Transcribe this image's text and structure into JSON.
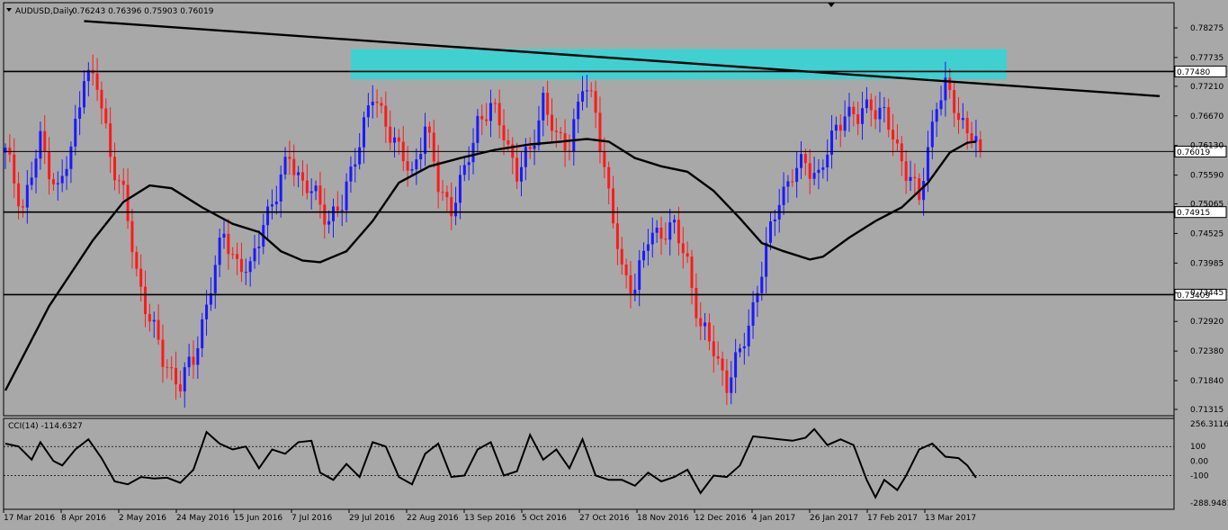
{
  "symbol_label": "AUDUSD,Daily",
  "ohlc_label": "0.76243 0.76396 0.75903 0.76019",
  "colors": {
    "background": "#a8a8a8",
    "bull": "#1a1aff",
    "bear": "#ff1a1a",
    "resistance_zone": "#40d0d0",
    "line": "#000000"
  },
  "chart_data": [
    {
      "type": "candlestick",
      "title": "AUDUSD,Daily",
      "y_ticks": [
        "0.78275",
        "0.77735",
        "0.77210",
        "0.76670",
        "0.76130",
        "0.75590",
        "0.75065",
        "0.74525",
        "0.73985",
        "0.73445",
        "0.72920",
        "0.72380",
        "0.71840",
        "0.71315"
      ],
      "ylim": [
        0.71315,
        0.7845
      ],
      "x_labels": [
        "17 Mar 2016",
        "8 Apr 2016",
        "2 May 2016",
        "24 May 2016",
        "15 Jun 2016",
        "7 Jul 2016",
        "29 Jul 2016",
        "22 Aug 2016",
        "13 Sep 2016",
        "5 Oct 2016",
        "27 Oct 2016",
        "18 Nov 2016",
        "12 Dec 2016",
        "4 Jan 2017",
        "26 Jan 2017",
        "17 Feb 2017",
        "13 Mar 2017"
      ],
      "close_path": [
        [
          0,
          0.76
        ],
        [
          4,
          0.75
        ],
        [
          8,
          0.762
        ],
        [
          12,
          0.753
        ],
        [
          15,
          0.76
        ],
        [
          18,
          0.775
        ],
        [
          21,
          0.772
        ],
        [
          24,
          0.76
        ],
        [
          27,
          0.752
        ],
        [
          30,
          0.738
        ],
        [
          33,
          0.73
        ],
        [
          36,
          0.722
        ],
        [
          40,
          0.718
        ],
        [
          43,
          0.722
        ],
        [
          47,
          0.736
        ],
        [
          50,
          0.745
        ],
        [
          53,
          0.74
        ],
        [
          56,
          0.738
        ],
        [
          59,
          0.748
        ],
        [
          62,
          0.752
        ],
        [
          65,
          0.76
        ],
        [
          68,
          0.754
        ],
        [
          71,
          0.752
        ],
        [
          74,
          0.748
        ],
        [
          77,
          0.75
        ],
        [
          80,
          0.76
        ],
        [
          84,
          0.77
        ],
        [
          87,
          0.766
        ],
        [
          90,
          0.76
        ],
        [
          93,
          0.756
        ],
        [
          96,
          0.765
        ],
        [
          99,
          0.754
        ],
        [
          102,
          0.75
        ],
        [
          105,
          0.756
        ],
        [
          108,
          0.766
        ],
        [
          111,
          0.768
        ],
        [
          114,
          0.764
        ],
        [
          117,
          0.756
        ],
        [
          120,
          0.76
        ],
        [
          123,
          0.77
        ],
        [
          126,
          0.762
        ],
        [
          129,
          0.762
        ],
        [
          132,
          0.772
        ],
        [
          135,
          0.768
        ],
        [
          138,
          0.752
        ],
        [
          141,
          0.738
        ],
        [
          144,
          0.736
        ],
        [
          147,
          0.744
        ],
        [
          150,
          0.746
        ],
        [
          153,
          0.746
        ],
        [
          156,
          0.74
        ],
        [
          159,
          0.728
        ],
        [
          162,
          0.724
        ],
        [
          165,
          0.718
        ],
        [
          168,
          0.723
        ],
        [
          171,
          0.732
        ],
        [
          174,
          0.742
        ],
        [
          177,
          0.752
        ],
        [
          180,
          0.756
        ],
        [
          183,
          0.758
        ],
        [
          186,
          0.756
        ],
        [
          189,
          0.762
        ],
        [
          192,
          0.768
        ],
        [
          195,
          0.766
        ],
        [
          198,
          0.769
        ],
        [
          201,
          0.767
        ],
        [
          204,
          0.76
        ],
        [
          207,
          0.756
        ],
        [
          209,
          0.751
        ],
        [
          211,
          0.76
        ],
        [
          213,
          0.77
        ],
        [
          215,
          0.772
        ],
        [
          218,
          0.766
        ],
        [
          221,
          0.764
        ],
        [
          223,
          0.76019
        ]
      ],
      "series": [
        {
          "name": "",
          "type": "ma",
          "points": [
            [
              0,
              0.7166
            ],
            [
              10,
              0.732
            ],
            [
              20,
              0.744
            ],
            [
              27,
              0.751
            ],
            [
              33,
              0.754
            ],
            [
              38,
              0.7535
            ],
            [
              45,
              0.75
            ],
            [
              52,
              0.747
            ],
            [
              58,
              0.7455
            ],
            [
              63,
              0.742
            ],
            [
              68,
              0.7403
            ],
            [
              72,
              0.74
            ],
            [
              78,
              0.742
            ],
            [
              84,
              0.7475
            ],
            [
              90,
              0.7545
            ],
            [
              97,
              0.7575
            ],
            [
              104,
              0.759
            ],
            [
              112,
              0.7605
            ],
            [
              120,
              0.7615
            ],
            [
              127,
              0.762
            ],
            [
              133,
              0.7625
            ],
            [
              138,
              0.762
            ],
            [
              144,
              0.759
            ],
            [
              150,
              0.7575
            ],
            [
              156,
              0.7565
            ],
            [
              162,
              0.753
            ],
            [
              168,
              0.748
            ],
            [
              173,
              0.7435
            ],
            [
              178,
              0.742
            ],
            [
              184,
              0.7405
            ],
            [
              187,
              0.741
            ],
            [
              193,
              0.7445
            ],
            [
              199,
              0.7475
            ],
            [
              205,
              0.75
            ],
            [
              211,
              0.7545
            ],
            [
              216,
              0.76
            ],
            [
              220,
              0.7618
            ],
            [
              222,
              0.762
            ]
          ]
        },
        {
          "name": "",
          "type": "trendline",
          "points": [
            [
              18,
              0.784
            ],
            [
              264,
              0.7703
            ]
          ]
        },
        {
          "name": "",
          "type": "hline",
          "value": 0.7748,
          "label": "0.77480"
        },
        {
          "name": "",
          "type": "hline",
          "value": 0.76019,
          "label": "0.76019"
        },
        {
          "name": "",
          "type": "hline",
          "value": 0.74915,
          "label": "0.74915"
        },
        {
          "name": "",
          "type": "hline",
          "value": 0.73409,
          "label": "0.73409"
        }
      ],
      "zone": {
        "x_from": 79,
        "x_to": 229,
        "y_from": 0.77338,
        "y_to": 0.7789
      }
    },
    {
      "type": "line",
      "title": "CCI(14) -114.6327",
      "y_ticks": [
        "256.3116",
        "100",
        "0.00",
        "-100",
        "-288.9481"
      ],
      "ylim": [
        -288.9481,
        256.3116
      ],
      "levels": [
        100,
        -100
      ],
      "series": [
        {
          "name": "CCI(14)",
          "points": [
            [
              0,
              120
            ],
            [
              3,
              100
            ],
            [
              6,
              10
            ],
            [
              8,
              130
            ],
            [
              11,
              0
            ],
            [
              13,
              -30
            ],
            [
              16,
              80
            ],
            [
              19,
              150
            ],
            [
              22,
              20
            ],
            [
              25,
              -140
            ],
            [
              28,
              -160
            ],
            [
              31,
              -110
            ],
            [
              34,
              -120
            ],
            [
              37,
              -115
            ],
            [
              40,
              -150
            ],
            [
              43,
              -60
            ],
            [
              46,
              200
            ],
            [
              49,
              120
            ],
            [
              52,
              80
            ],
            [
              55,
              100
            ],
            [
              58,
              -50
            ],
            [
              61,
              80
            ],
            [
              64,
              50
            ],
            [
              67,
              130
            ],
            [
              70,
              140
            ],
            [
              72,
              -80
            ],
            [
              75,
              -130
            ],
            [
              78,
              -20
            ],
            [
              81,
              -110
            ],
            [
              84,
              130
            ],
            [
              87,
              100
            ],
            [
              90,
              -110
            ],
            [
              93,
              -160
            ],
            [
              96,
              50
            ],
            [
              99,
              120
            ],
            [
              102,
              -110
            ],
            [
              105,
              -100
            ],
            [
              108,
              80
            ],
            [
              111,
              130
            ],
            [
              114,
              -100
            ],
            [
              117,
              -70
            ],
            [
              120,
              180
            ],
            [
              123,
              10
            ],
            [
              126,
              80
            ],
            [
              129,
              -50
            ],
            [
              132,
              150
            ],
            [
              135,
              -100
            ],
            [
              138,
              -130
            ],
            [
              141,
              -130
            ],
            [
              144,
              -170
            ],
            [
              147,
              -80
            ],
            [
              150,
              -140
            ],
            [
              153,
              -110
            ],
            [
              156,
              -60
            ],
            [
              159,
              -220
            ],
            [
              162,
              -100
            ],
            [
              165,
              -110
            ],
            [
              168,
              -30
            ],
            [
              171,
              170
            ],
            [
              174,
              160
            ],
            [
              177,
              150
            ],
            [
              180,
              140
            ],
            [
              183,
              160
            ],
            [
              185,
              220
            ],
            [
              188,
              110
            ],
            [
              191,
              150
            ],
            [
              194,
              110
            ],
            [
              197,
              -130
            ],
            [
              199,
              -250
            ],
            [
              201,
              -130
            ],
            [
              204,
              -200
            ],
            [
              206,
              -100
            ],
            [
              209,
              80
            ],
            [
              212,
              120
            ],
            [
              215,
              30
            ],
            [
              218,
              20
            ],
            [
              220,
              -30
            ],
            [
              222,
              -114.6327
            ]
          ]
        }
      ]
    }
  ]
}
